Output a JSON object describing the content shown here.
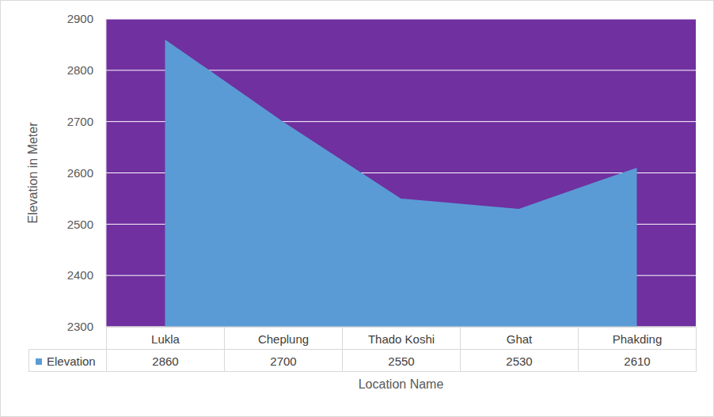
{
  "chart_data": {
    "type": "area",
    "categories": [
      "Lukla",
      "Cheplung",
      "Thado Koshi",
      "Ghat",
      "Phakding"
    ],
    "series": [
      {
        "name": "Elevation",
        "color": "#5b9bd5",
        "values": [
          2860,
          2700,
          2550,
          2530,
          2610
        ]
      }
    ],
    "x_label": "Location Name",
    "y_label": "Elevation in Meter",
    "ylim": [
      2300,
      2900
    ],
    "yticks": [
      2300,
      2400,
      2500,
      2600,
      2700,
      2800,
      2900
    ],
    "grid": true
  }
}
